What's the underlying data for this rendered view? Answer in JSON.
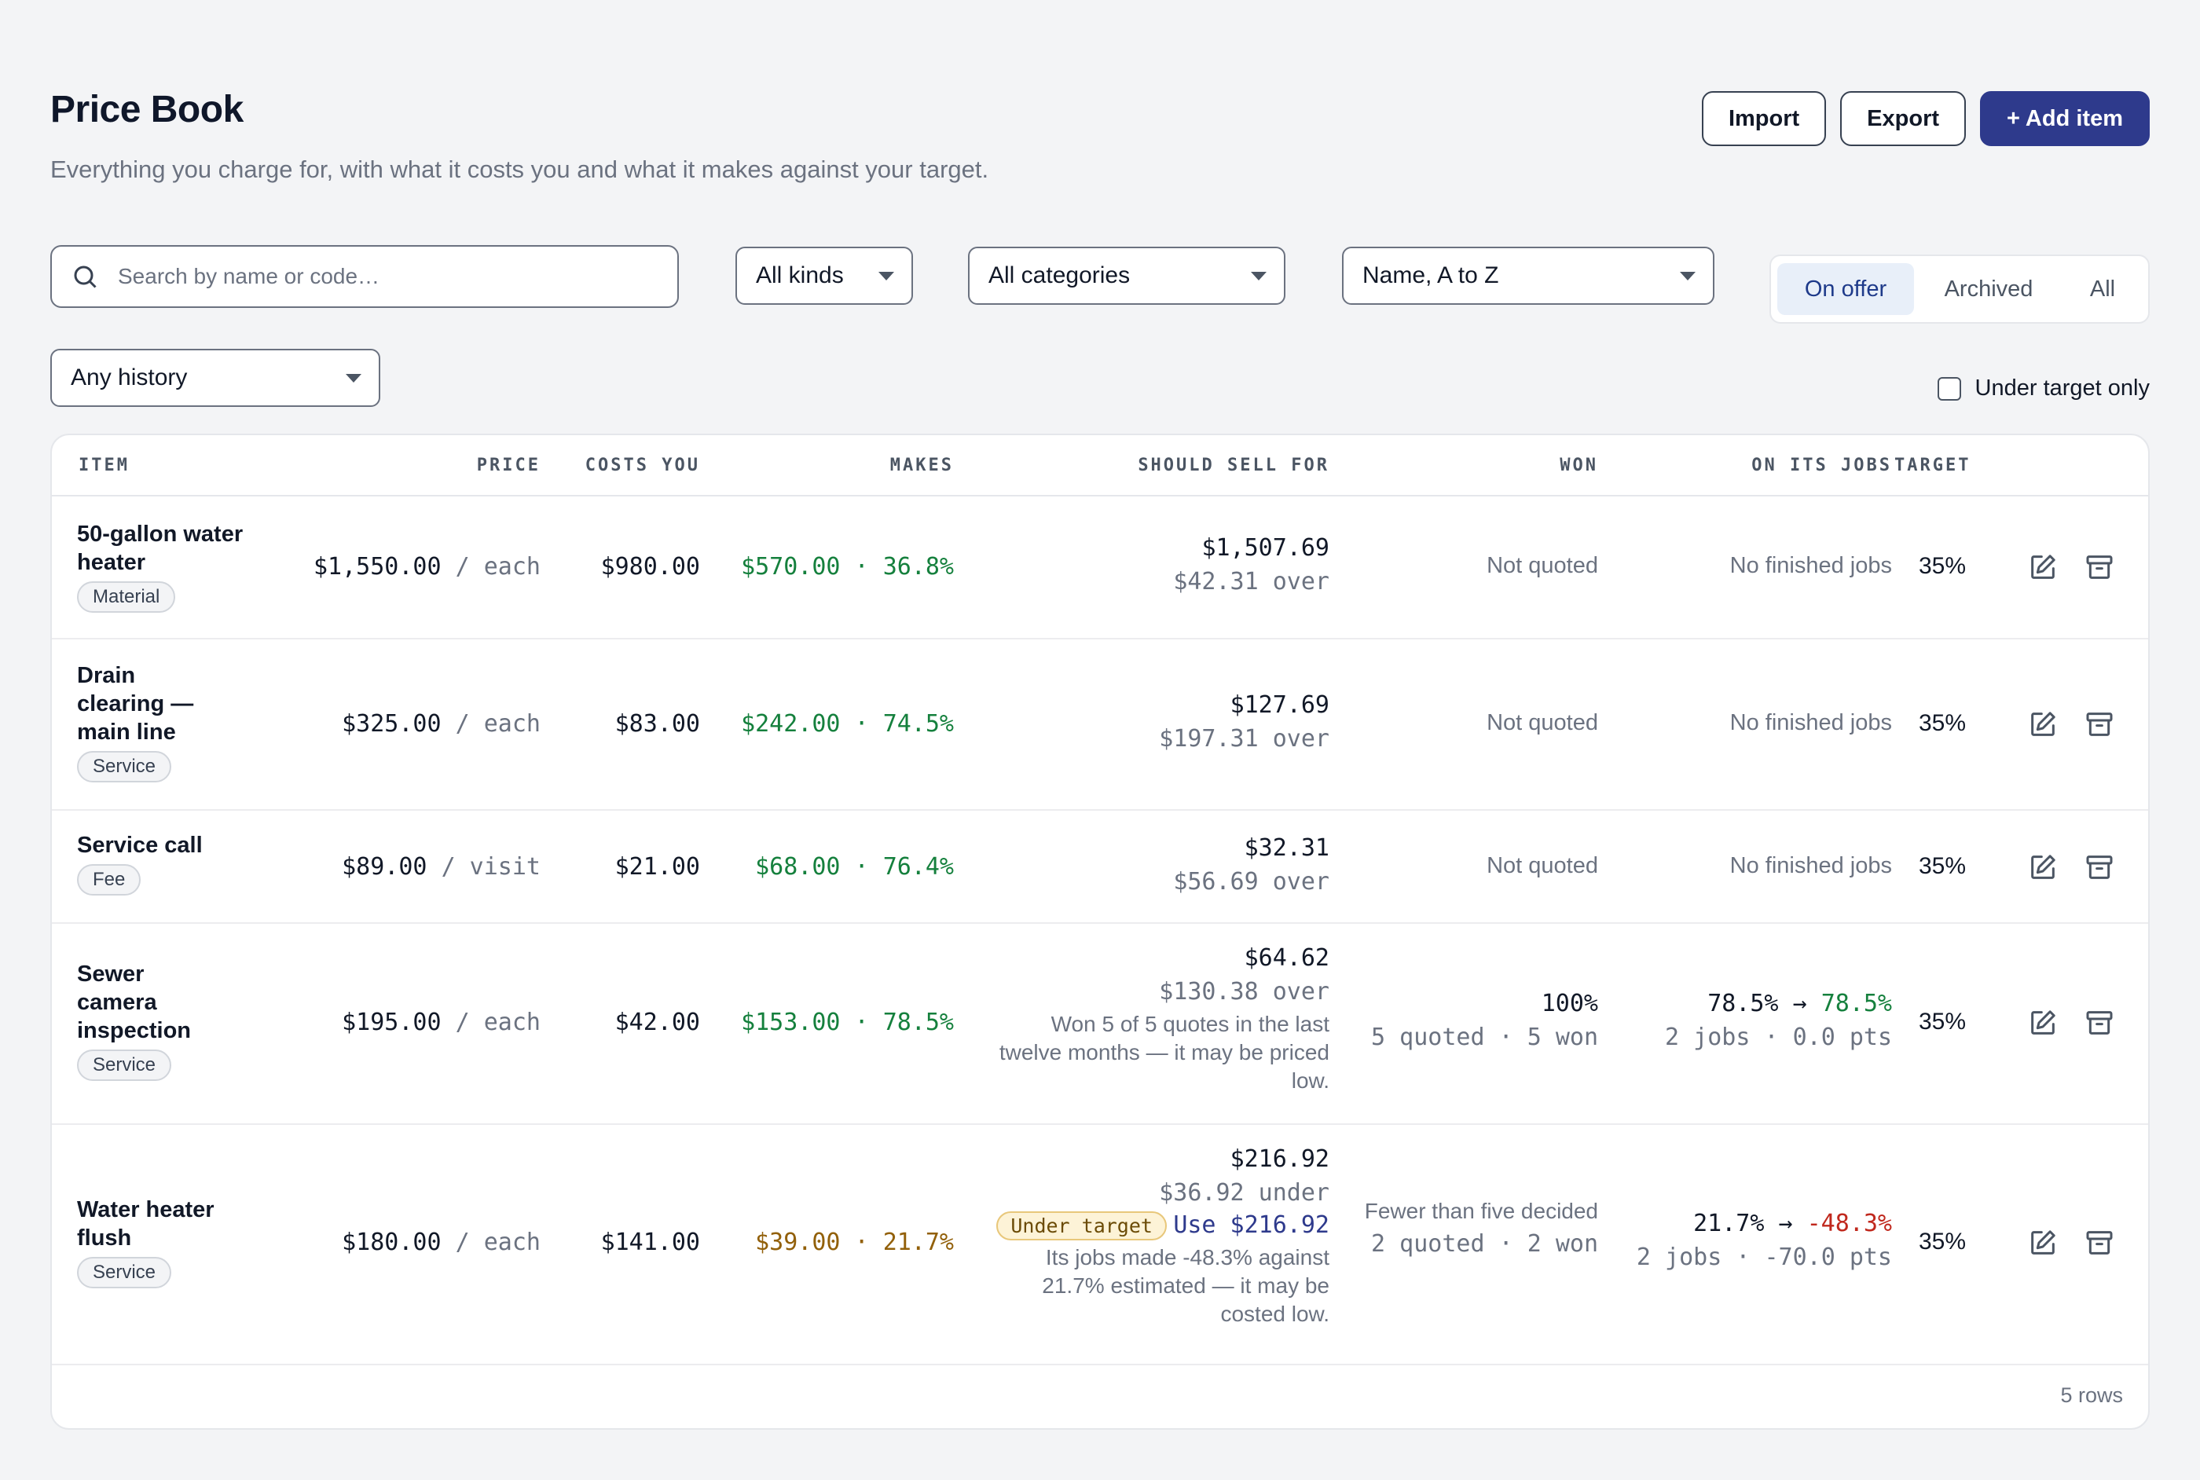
{
  "header": {
    "title": "Price Book",
    "subtitle": "Everything you charge for, with what it costs you and what it makes against your target.",
    "import_label": "Import",
    "export_label": "Export",
    "add_label": "+ Add item"
  },
  "filters": {
    "search_placeholder": "Search by name or code…",
    "kind": "All kinds",
    "category": "All categories",
    "sort": "Name, A to Z",
    "history": "Any history",
    "status_tabs": [
      "On offer",
      "Archived",
      "All"
    ],
    "active_tab": "On offer",
    "under_target_label": "Under target only"
  },
  "table": {
    "columns": [
      "ITEM",
      "PRICE",
      "COSTS YOU",
      "MAKES",
      "SHOULD SELL FOR",
      "WON",
      "ON ITS JOBS",
      "TARGET"
    ],
    "rows": [
      {
        "name": "50-gallon water heater",
        "category": "Material",
        "price": "$1,550.00",
        "unit": "/ each",
        "cost": "$980.00",
        "makes_amount": "$570.00",
        "makes_sep": "·",
        "makes_pct": "36.8%",
        "should_sell": "$1,507.69",
        "sell_diff": "$42.31 over",
        "won": "Not quoted",
        "jobs": "No finished jobs",
        "target": "35%"
      },
      {
        "name": "Drain clearing — main line",
        "category": "Service",
        "price": "$325.00",
        "unit": "/ each",
        "cost": "$83.00",
        "makes_amount": "$242.00",
        "makes_sep": "·",
        "makes_pct": "74.5%",
        "should_sell": "$127.69",
        "sell_diff": "$197.31 over",
        "won": "Not quoted",
        "jobs": "No finished jobs",
        "target": "35%"
      },
      {
        "name": "Service call",
        "category": "Fee",
        "price": "$89.00",
        "unit": "/ visit",
        "cost": "$21.00",
        "makes_amount": "$68.00",
        "makes_sep": "·",
        "makes_pct": "76.4%",
        "should_sell": "$32.31",
        "sell_diff": "$56.69 over",
        "won": "Not quoted",
        "jobs": "No finished jobs",
        "target": "35%"
      },
      {
        "name": "Sewer camera inspection",
        "category": "Service",
        "price": "$195.00",
        "unit": "/ each",
        "cost": "$42.00",
        "makes_amount": "$153.00",
        "makes_sep": "·",
        "makes_pct": "78.5%",
        "should_sell": "$64.62",
        "sell_diff": "$130.38 over",
        "sell_note": "Won 5 of 5 quotes in the last twelve months — it may be priced low.",
        "won_pct": "100%",
        "won_detail": "5 quoted · 5 won",
        "jobs_from": "78.5%",
        "jobs_arrow": "→",
        "jobs_to": "78.5%",
        "jobs_detail": "2 jobs · 0.0 pts",
        "target": "35%"
      },
      {
        "name": "Water heater flush",
        "category": "Service",
        "price": "$180.00",
        "unit": "/ each",
        "cost": "$141.00",
        "makes_amount": "$39.00",
        "makes_sep": "·",
        "makes_pct": "21.7%",
        "should_sell": "$216.92",
        "sell_diff": "$36.92 under",
        "under_badge": "Under target",
        "use_label": "Use $216.92",
        "sell_note": "Its jobs made -48.3% against 21.7% estimated — it may be costed low.",
        "won_note": "Fewer than five decided",
        "won_detail": "2 quoted · 2 won",
        "jobs_from": "21.7%",
        "jobs_arrow": "→",
        "jobs_to": "-48.3%",
        "jobs_detail": "2 jobs · -70.0 pts",
        "target": "35%"
      }
    ],
    "row_count": "5 rows"
  },
  "colors": {
    "primary": "#2e3a8c",
    "positive": "#15803d",
    "warning": "#92600a",
    "negative": "#c0281d"
  },
  "icons": {
    "search": "search-icon",
    "edit": "edit-icon",
    "archive": "archive-icon"
  }
}
